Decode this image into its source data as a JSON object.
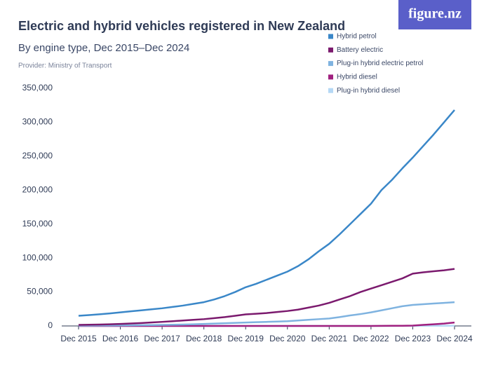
{
  "chart_data": {
    "type": "line",
    "title": "Electric and hybrid vehicles registered in New Zealand",
    "subtitle": "By engine type, Dec 2015–Dec 2024",
    "provider": "Provider: Ministry of Transport",
    "logo": "figure.nz",
    "categories": [
      "Dec 2015",
      null,
      null,
      null,
      "Dec 2016",
      null,
      null,
      null,
      "Dec 2017",
      null,
      null,
      null,
      "Dec 2018",
      null,
      null,
      null,
      "Dec 2019",
      null,
      null,
      null,
      "Dec 2020",
      null,
      null,
      null,
      "Dec 2021",
      null,
      null,
      null,
      "Dec 2022",
      null,
      null,
      null,
      "Dec 2023",
      null,
      null,
      null,
      "Dec 2024"
    ],
    "series": [
      {
        "name": "Hybrid petrol",
        "color": "#3a87c8",
        "values": [
          15000,
          16000,
          17200,
          18500,
          20000,
          21500,
          23000,
          24500,
          26000,
          28000,
          30000,
          32500,
          35000,
          39000,
          44000,
          50000,
          57000,
          62000,
          68000,
          74000,
          80000,
          88000,
          98000,
          110000,
          121000,
          135000,
          150000,
          165000,
          180000,
          200000,
          215000,
          232000,
          248000,
          265000,
          282000,
          300000,
          318000
        ]
      },
      {
        "name": "Battery electric",
        "color": "#7b1a6e",
        "values": [
          1500,
          1800,
          2100,
          2500,
          3000,
          3600,
          4300,
          5100,
          6000,
          7000,
          8000,
          9000,
          10000,
          11500,
          13000,
          15000,
          17000,
          18000,
          19000,
          20500,
          22000,
          24000,
          27000,
          30000,
          34000,
          39000,
          44000,
          50000,
          55000,
          60000,
          65000,
          70000,
          77000,
          79000,
          80500,
          82000,
          84000
        ]
      },
      {
        "name": "Plug-in hybrid electric petrol",
        "color": "#7fb3e0",
        "values": [
          500,
          550,
          600,
          700,
          800,
          950,
          1100,
          1300,
          1500,
          1800,
          2100,
          2500,
          3000,
          3500,
          4000,
          4500,
          5000,
          5500,
          6000,
          6500,
          7000,
          8000,
          9000,
          10000,
          11000,
          13000,
          15500,
          17500,
          20000,
          23000,
          26000,
          29000,
          31000,
          32000,
          33000,
          34000,
          35000
        ]
      },
      {
        "name": "Hybrid diesel",
        "color": "#a0207f",
        "values": [
          0,
          0,
          0,
          0,
          0,
          0,
          0,
          0,
          0,
          0,
          0,
          0,
          0,
          0,
          0,
          0,
          0,
          0,
          0,
          0,
          0,
          0,
          0,
          0,
          0,
          0,
          0,
          0,
          0,
          100,
          200,
          300,
          500,
          1500,
          2500,
          3500,
          5000
        ]
      },
      {
        "name": "Plug-in hybrid diesel",
        "color": "#b5d8f5",
        "values": [
          0,
          0,
          0,
          0,
          0,
          0,
          0,
          0,
          0,
          0,
          0,
          0,
          0,
          0,
          0,
          0,
          0,
          0,
          0,
          0,
          0,
          0,
          0,
          0,
          0,
          0,
          0,
          0,
          0,
          0,
          50,
          100,
          150,
          200,
          250,
          300,
          350
        ]
      }
    ],
    "ylim": [
      0,
      350000
    ],
    "yticks": [
      0,
      {
        "value": 50000,
        "label": "50,000"
      },
      {
        "value": 100000,
        "label": "100,000"
      },
      {
        "value": 150000,
        "label": "150,000"
      },
      {
        "value": 200000,
        "label": "200,000"
      },
      {
        "value": 250000,
        "label": "250,000"
      },
      {
        "value": 300000,
        "label": "300,000"
      },
      {
        "value": 350000,
        "label": "350,000"
      }
    ],
    "grid": false,
    "legend": "top-right"
  }
}
